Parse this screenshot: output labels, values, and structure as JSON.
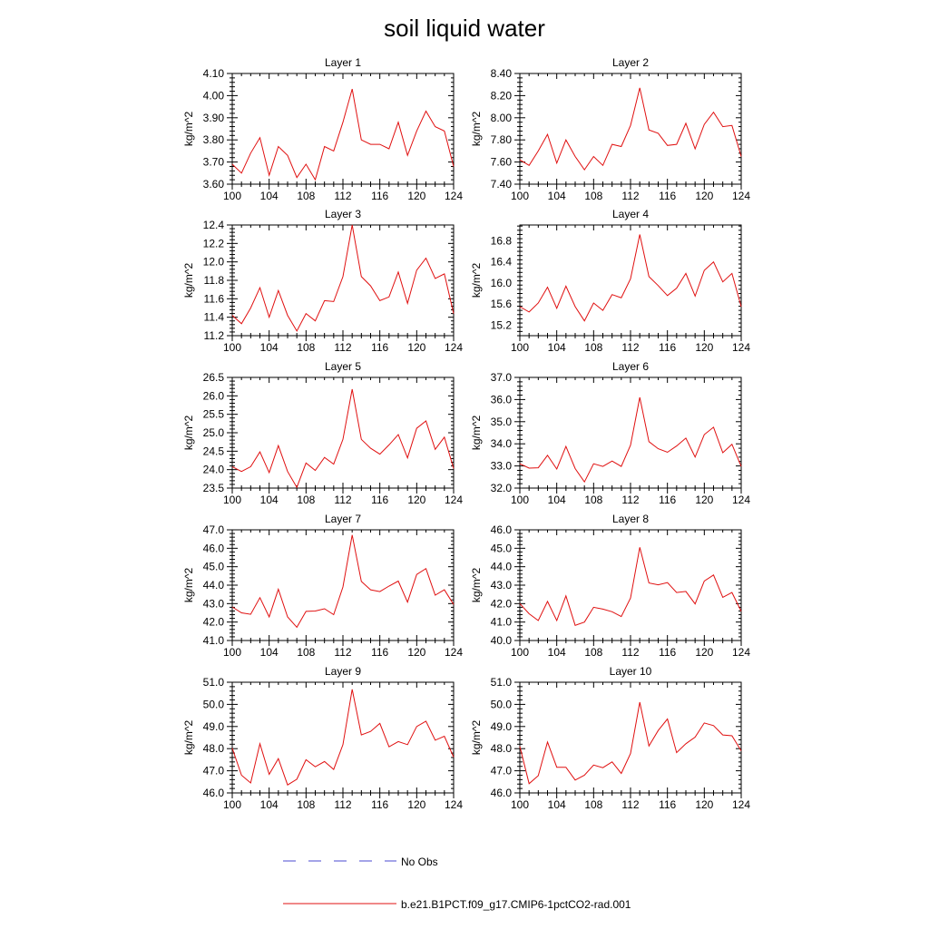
{
  "chart_data": {
    "title": "soil liquid water",
    "type": "line",
    "grid": false,
    "legend_position": "bottom",
    "legend": [
      {
        "label": "No Obs",
        "color": "#4a4ad0",
        "style": "dashed"
      },
      {
        "label": "b.e21.B1PCT.f09_g17.CMIP6-1pctCO2-rad.001",
        "color": "#e01010",
        "style": "solid"
      }
    ],
    "x": [
      100,
      101,
      102,
      103,
      104,
      105,
      106,
      107,
      108,
      109,
      110,
      111,
      112,
      113,
      114,
      115,
      116,
      117,
      118,
      119,
      120,
      121,
      122,
      123,
      124
    ],
    "xlim": [
      100,
      124
    ],
    "xticks": [
      100,
      104,
      108,
      112,
      116,
      120,
      124
    ],
    "panels": [
      {
        "title": "Layer 1",
        "ylabel": "kg/m^2",
        "ylim": [
          3.6,
          4.1
        ],
        "yticks": [
          3.6,
          3.7,
          3.8,
          3.9,
          4.0,
          4.1
        ],
        "decimals": 2,
        "values": [
          3.69,
          3.65,
          3.74,
          3.81,
          3.64,
          3.77,
          3.73,
          3.63,
          3.69,
          3.62,
          3.77,
          3.75,
          3.88,
          4.03,
          3.8,
          3.78,
          3.78,
          3.76,
          3.88,
          3.73,
          3.84,
          3.93,
          3.86,
          3.84,
          3.68
        ]
      },
      {
        "title": "Layer 2",
        "ylabel": "kg/m^2",
        "ylim": [
          7.4,
          8.4
        ],
        "yticks": [
          7.4,
          7.6,
          7.8,
          8.0,
          8.2,
          8.4
        ],
        "decimals": 2,
        "values": [
          7.62,
          7.57,
          7.7,
          7.85,
          7.59,
          7.8,
          7.65,
          7.53,
          7.65,
          7.57,
          7.76,
          7.74,
          7.93,
          8.27,
          7.89,
          7.86,
          7.75,
          7.76,
          7.95,
          7.72,
          7.94,
          8.05,
          7.92,
          7.93,
          7.65
        ]
      },
      {
        "title": "Layer 3",
        "ylabel": "kg/m^2",
        "ylim": [
          11.2,
          12.4
        ],
        "yticks": [
          11.2,
          11.4,
          11.6,
          11.8,
          12.0,
          12.2,
          12.4
        ],
        "decimals": 1,
        "values": [
          11.42,
          11.33,
          11.5,
          11.72,
          11.4,
          11.69,
          11.42,
          11.25,
          11.44,
          11.36,
          11.58,
          11.57,
          11.84,
          12.4,
          11.84,
          11.74,
          11.58,
          11.62,
          11.89,
          11.55,
          11.91,
          12.04,
          11.82,
          11.87,
          11.44
        ]
      },
      {
        "title": "Layer 4",
        "ylabel": "kg/m^2",
        "ylim": [
          15.0,
          17.1
        ],
        "yticks": [
          15.2,
          15.6,
          16.0,
          16.4,
          16.8
        ],
        "decimals": 1,
        "values": [
          15.55,
          15.45,
          15.62,
          15.92,
          15.52,
          15.94,
          15.55,
          15.28,
          15.62,
          15.48,
          15.78,
          15.72,
          16.08,
          16.92,
          16.12,
          15.95,
          15.76,
          15.9,
          16.18,
          15.75,
          16.24,
          16.4,
          16.02,
          16.18,
          15.55
        ]
      },
      {
        "title": "Layer 5",
        "ylabel": "kg/m^2",
        "ylim": [
          23.5,
          26.5
        ],
        "yticks": [
          23.5,
          24.0,
          24.5,
          25.0,
          25.5,
          26.0,
          26.5
        ],
        "decimals": 1,
        "values": [
          24.08,
          23.95,
          24.08,
          24.48,
          23.92,
          24.65,
          23.95,
          23.52,
          24.18,
          23.98,
          24.33,
          24.15,
          24.82,
          26.18,
          24.82,
          24.58,
          24.42,
          24.67,
          24.95,
          24.32,
          25.12,
          25.32,
          24.55,
          24.88,
          24.03
        ]
      },
      {
        "title": "Layer 6",
        "ylabel": "kg/m^2",
        "ylim": [
          32.0,
          37.0
        ],
        "yticks": [
          32.0,
          33.0,
          34.0,
          35.0,
          36.0,
          37.0
        ],
        "decimals": 1,
        "values": [
          33.1,
          32.9,
          32.92,
          33.48,
          32.86,
          33.88,
          32.88,
          32.28,
          33.1,
          32.98,
          33.22,
          32.98,
          33.94,
          36.1,
          34.1,
          33.78,
          33.62,
          33.9,
          34.26,
          33.4,
          34.42,
          34.75,
          33.6,
          33.98,
          32.98
        ]
      },
      {
        "title": "Layer 7",
        "ylabel": "kg/m^2",
        "ylim": [
          41.0,
          47.0
        ],
        "yticks": [
          41.0,
          42.0,
          43.0,
          44.0,
          45.0,
          46.0,
          47.0
        ],
        "decimals": 1,
        "values": [
          42.82,
          42.5,
          42.42,
          43.32,
          42.28,
          43.78,
          42.28,
          41.72,
          42.58,
          42.6,
          42.72,
          42.4,
          43.9,
          46.72,
          44.2,
          43.75,
          43.65,
          43.95,
          44.22,
          43.08,
          44.58,
          44.9,
          43.46,
          43.75,
          42.95
        ]
      },
      {
        "title": "Layer 8",
        "ylabel": "kg/m^2",
        "ylim": [
          40.0,
          46.0
        ],
        "yticks": [
          40.0,
          41.0,
          42.0,
          43.0,
          44.0,
          45.0,
          46.0
        ],
        "decimals": 1,
        "values": [
          42.0,
          41.45,
          41.08,
          42.12,
          41.08,
          42.42,
          40.82,
          41.0,
          41.8,
          41.7,
          41.56,
          41.3,
          42.3,
          45.05,
          43.12,
          43.02,
          43.14,
          42.6,
          42.66,
          41.98,
          43.22,
          43.55,
          42.34,
          42.6,
          41.58
        ]
      },
      {
        "title": "Layer 9",
        "ylabel": "kg/m^2",
        "ylim": [
          46.0,
          51.0
        ],
        "yticks": [
          46.0,
          47.0,
          48.0,
          49.0,
          50.0,
          51.0
        ],
        "decimals": 1,
        "values": [
          48.02,
          46.8,
          46.45,
          48.22,
          46.84,
          47.55,
          46.36,
          46.62,
          47.5,
          47.18,
          47.42,
          47.06,
          48.18,
          50.68,
          48.62,
          48.78,
          49.14,
          48.08,
          48.32,
          48.18,
          49.0,
          49.24,
          48.38,
          48.56,
          47.62
        ]
      },
      {
        "title": "Layer 10",
        "ylabel": "kg/m^2",
        "ylim": [
          46.0,
          51.0
        ],
        "yticks": [
          46.0,
          47.0,
          48.0,
          49.0,
          50.0,
          51.0
        ],
        "decimals": 1,
        "values": [
          48.1,
          46.42,
          46.78,
          48.3,
          47.16,
          47.16,
          46.58,
          46.8,
          47.26,
          47.14,
          47.4,
          46.88,
          47.78,
          50.1,
          48.12,
          48.82,
          49.34,
          47.82,
          48.22,
          48.52,
          49.16,
          49.04,
          48.62,
          48.58,
          47.9
        ]
      }
    ]
  }
}
